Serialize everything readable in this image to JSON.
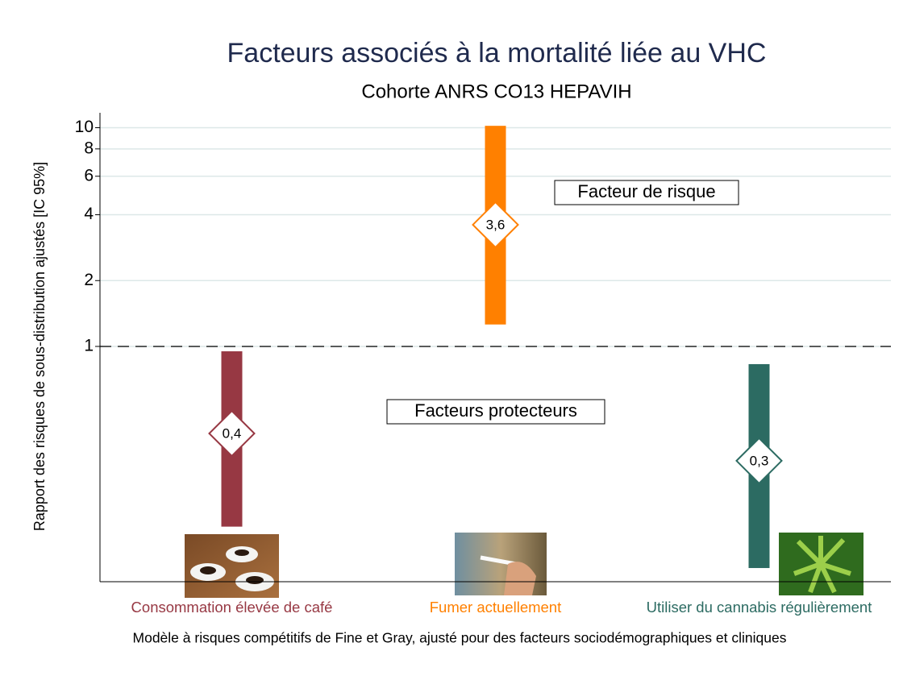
{
  "chart_data": {
    "type": "range",
    "title": "Facteurs associés à la mortalité liée au VHC",
    "subtitle": "Cohorte ANRS CO13 HEPAVIH",
    "y_label": "Rapport des risques de sous-distribution ajustés [IC 95%]",
    "note": "Modèle à risques compétitifs de Fine et Gray, ajusté pour des facteurs sociodémographiques et cliniques",
    "annotations": [
      "Facteur de risque",
      "Facteurs protecteurs"
    ],
    "categories": [
      "Consommation élevée de café",
      "Fumer actuellement",
      "Utiliser du cannabis régulièrement"
    ],
    "colors": [
      "#973843",
      "#ff8000",
      "#2c6b62"
    ],
    "values": [
      0.4,
      3.6,
      0.3
    ],
    "value_labels": [
      "0,4",
      "3,6",
      "0,3"
    ],
    "low": [
      0.15,
      1.26,
      0.097
    ],
    "high": [
      0.95,
      10.2,
      0.83
    ],
    "reference_line": 1,
    "log_y": true,
    "grid": true,
    "ylim": [
      0.084,
      11.7
    ],
    "yticks": [
      1,
      2,
      4,
      6,
      8,
      10
    ]
  }
}
